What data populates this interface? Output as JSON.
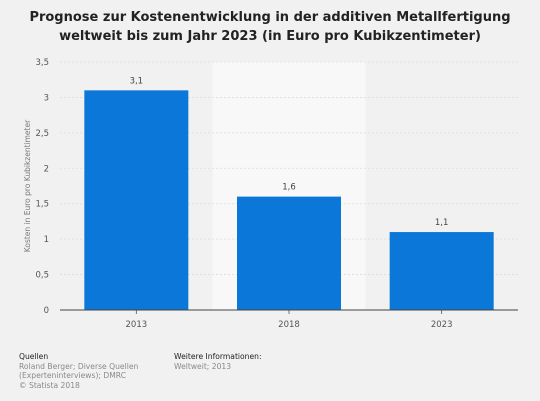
{
  "chart_data": {
    "type": "bar",
    "title": "Prognose zur Kostenentwicklung in der additiven Metallfertigung weltweit bis zum Jahr 2023 (in Euro pro Kubikzentimeter)",
    "title_lines": [
      "Prognose zur Kostenentwicklung in der additiven Metallfertigung",
      "weltweit bis zum Jahr 2023 (in Euro pro Kubikzentimeter)"
    ],
    "categories": [
      "2013",
      "2018",
      "2023"
    ],
    "values": [
      3.1,
      1.6,
      1.1
    ],
    "value_labels": [
      "3,1",
      "1,6",
      "1,1"
    ],
    "ylabel": "Kosten in Euro pro Kubikzentimeter",
    "xlabel": "",
    "ylim": [
      0,
      3.5
    ],
    "yticks": [
      0,
      0.5,
      1,
      1.5,
      2,
      2.5,
      3,
      3.5
    ],
    "ytick_labels": [
      "0",
      "0,5",
      "1",
      "1,5",
      "2",
      "2,5",
      "3",
      "3,5"
    ],
    "grid": true,
    "highlighted_category": "2018",
    "bar_color": "#0b77d9",
    "highlight_band_color": "#f8f8f8",
    "plot_background": "#f1f1f1"
  },
  "footer": {
    "sources_heading": "Quellen",
    "sources_lines": [
      "Roland Berger; Diverse Quellen",
      "(Experteninterviews); DMRC",
      "© Statista 2018"
    ],
    "info_heading": "Weitere Informationen:",
    "info_lines": [
      "Weltweit; 2013"
    ]
  }
}
